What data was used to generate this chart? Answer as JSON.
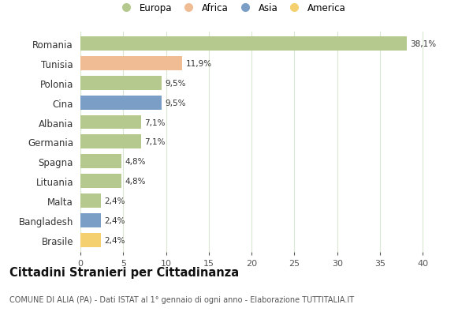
{
  "countries": [
    "Romania",
    "Tunisia",
    "Polonia",
    "Cina",
    "Albania",
    "Germania",
    "Spagna",
    "Lituania",
    "Malta",
    "Bangladesh",
    "Brasile"
  ],
  "values": [
    38.1,
    11.9,
    9.5,
    9.5,
    7.1,
    7.1,
    4.8,
    4.8,
    2.4,
    2.4,
    2.4
  ],
  "labels": [
    "38,1%",
    "11,9%",
    "9,5%",
    "9,5%",
    "7,1%",
    "7,1%",
    "4,8%",
    "4,8%",
    "2,4%",
    "2,4%",
    "2,4%"
  ],
  "colors": [
    "#b5c98e",
    "#f0bc94",
    "#b5c98e",
    "#7b9ec7",
    "#b5c98e",
    "#b5c98e",
    "#b5c98e",
    "#b5c98e",
    "#b5c98e",
    "#7b9ec7",
    "#f5d06e"
  ],
  "legend_labels": [
    "Europa",
    "Africa",
    "Asia",
    "America"
  ],
  "legend_colors": [
    "#b5c98e",
    "#f0bc94",
    "#7b9ec7",
    "#f5d06e"
  ],
  "title": "Cittadini Stranieri per Cittadinanza",
  "subtitle": "COMUNE DI ALIA (PA) - Dati ISTAT al 1° gennaio di ogni anno - Elaborazione TUTTITALIA.IT",
  "xlim": [
    0,
    42
  ],
  "xticks": [
    0,
    5,
    10,
    15,
    20,
    25,
    30,
    35,
    40
  ],
  "background_color": "#ffffff",
  "grid_color": "#d8e8d0",
  "bar_height": 0.72
}
